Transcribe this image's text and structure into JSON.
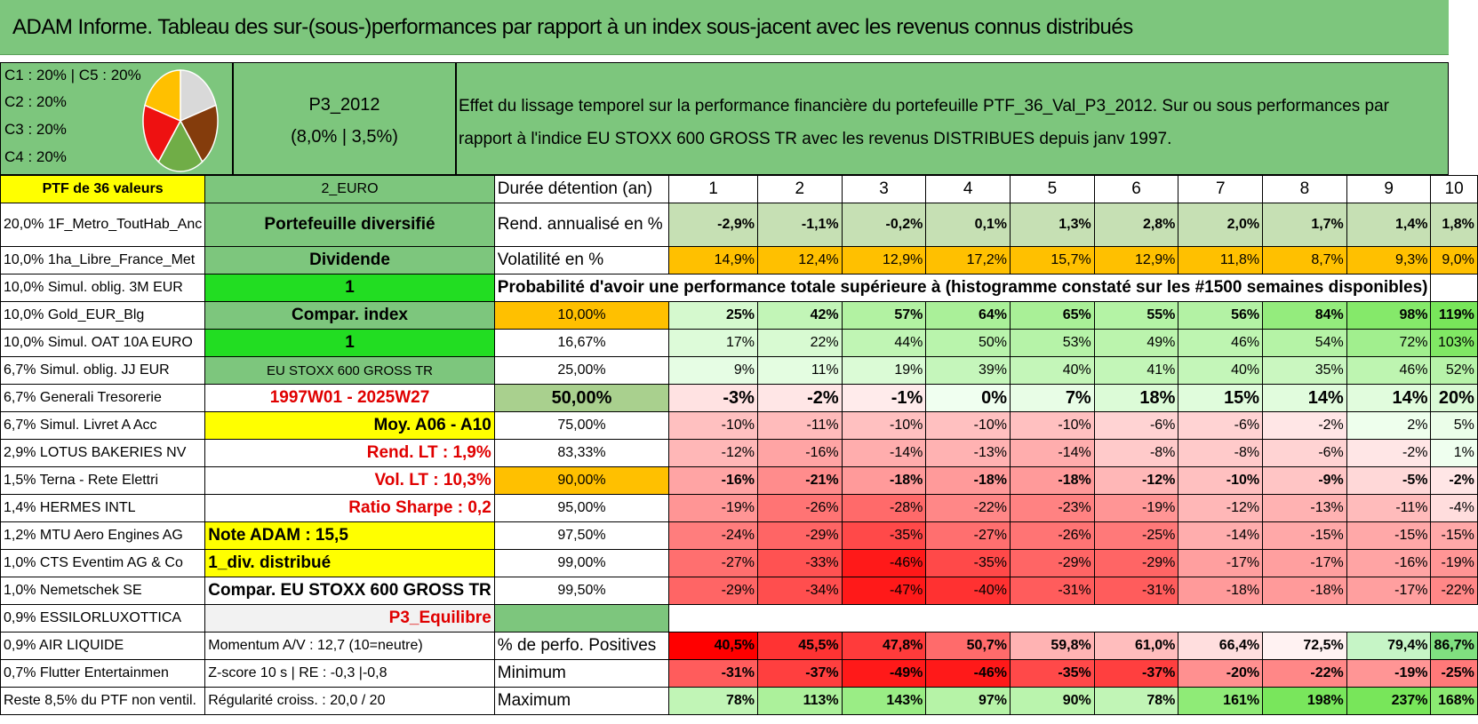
{
  "title": "ADAM Informe. Tableau des sur-(sous-)performances par rapport à un index sous-jacent avec les revenus connus distribués",
  "legend": {
    "lines": [
      "C1 : 20% | C5 : 20%",
      "C2 : 20%",
      "C3 : 20%",
      "C4 : 20%"
    ],
    "pie_colors": [
      "#d9d9d9",
      "#843c0c",
      "#70ad47",
      "#ee1111",
      "#ffc000"
    ]
  },
  "portfolio": {
    "name": "P3_2012",
    "sub": "(8,0% | 3,5%)"
  },
  "description": "Effet du lissage temporel sur la performance financière du portefeuille PTF_36_Val_P3_2012. Sur ou sous performances par rapport à l'indice EU STOXX 600 GROSS TR avec les revenus DISTRIBUES depuis janv 1997.",
  "header_row": {
    "col0": "PTF de 36 valeurs",
    "col1": "2_EURO",
    "col2": "Durée détention (an)",
    "years": [
      "1",
      "2",
      "3",
      "4",
      "5",
      "6",
      "7",
      "8",
      "9",
      "10"
    ]
  },
  "holdings": [
    "20,0% 1F_Metro_ToutHab_Anc",
    "10,0% 1ha_Libre_France_Met",
    "10,0% Simul. oblig. 3M EUR",
    "10,0% Gold_EUR_Blg",
    "10,0% Simul. OAT 10A EURO",
    "6,7% Simul. oblig. JJ EUR",
    "6,7% Generali Tresorerie",
    "6,7% Simul. Livret A Acc",
    "2,9% LOTUS BAKERIES NV",
    "1,5% Terna - Rete Elettri",
    "1,4% HERMES INTL",
    "1,2% MTU Aero Engines AG",
    "1,0% CTS Eventim AG & Co",
    "1,0% Nemetschek SE",
    "0,9% ESSILORLUXOTTICA",
    "0,9% AIR LIQUIDE",
    "0,7% Flutter Entertainmen",
    "Reste 8,5% du PTF non ventil."
  ],
  "info": [
    "Portefeuille diversifié",
    "Dividende",
    "1",
    "Compar. index",
    "1",
    "EU STOXX 600 GROSS TR",
    "1997W01 - 2025W27",
    "Moy. A06 - A10",
    "Rend. LT : 1,9%",
    "Vol. LT : 10,3%",
    "Ratio Sharpe : 0,2",
    "Note ADAM : 15,5",
    "1_div. distribué",
    "Compar. EU STOXX 600 GROSS TR",
    "P3_Equilibre",
    "Momentum A/V : 12,7 (10=neutre)",
    "Z-score 10 s | RE : -0,3 |-0,8",
    "Régularité croiss. : 20,0 / 20"
  ],
  "rend": {
    "label": "Rend. annualisé en %",
    "values": [
      "-2,9%",
      "-1,1%",
      "-0,2%",
      "0,1%",
      "1,3%",
      "2,8%",
      "2,0%",
      "1,7%",
      "1,4%",
      "1,8%"
    ]
  },
  "vol": {
    "label": "Volatilité en %",
    "values": [
      "14,9%",
      "12,4%",
      "12,9%",
      "17,2%",
      "15,7%",
      "12,9%",
      "11,8%",
      "8,7%",
      "9,3%",
      "9,0%"
    ]
  },
  "prob_title": "Probabilité d'avoir une performance totale supérieure à (histogramme constaté sur les #1500 semaines disponibles)",
  "quantiles": [
    {
      "label": "10,00%",
      "values": [
        "25%",
        "42%",
        "57%",
        "64%",
        "65%",
        "55%",
        "56%",
        "84%",
        "98%",
        "119%"
      ]
    },
    {
      "label": "16,67%",
      "values": [
        "17%",
        "22%",
        "44%",
        "50%",
        "53%",
        "49%",
        "46%",
        "54%",
        "72%",
        "103%"
      ]
    },
    {
      "label": "25,00%",
      "values": [
        "9%",
        "11%",
        "19%",
        "39%",
        "40%",
        "41%",
        "40%",
        "35%",
        "46%",
        "52%"
      ]
    },
    {
      "label": "50,00%",
      "values": [
        "-3%",
        "-2%",
        "-1%",
        "0%",
        "7%",
        "18%",
        "15%",
        "14%",
        "14%",
        "20%"
      ]
    },
    {
      "label": "75,00%",
      "values": [
        "-10%",
        "-11%",
        "-10%",
        "-10%",
        "-10%",
        "-6%",
        "-6%",
        "-2%",
        "2%",
        "5%"
      ]
    },
    {
      "label": "83,33%",
      "values": [
        "-12%",
        "-16%",
        "-14%",
        "-13%",
        "-14%",
        "-8%",
        "-8%",
        "-6%",
        "-2%",
        "1%"
      ]
    },
    {
      "label": "90,00%",
      "values": [
        "-16%",
        "-21%",
        "-18%",
        "-18%",
        "-18%",
        "-12%",
        "-10%",
        "-9%",
        "-5%",
        "-2%"
      ]
    },
    {
      "label": "95,00%",
      "values": [
        "-19%",
        "-26%",
        "-28%",
        "-22%",
        "-23%",
        "-19%",
        "-12%",
        "-13%",
        "-11%",
        "-4%"
      ]
    },
    {
      "label": "97,50%",
      "values": [
        "-24%",
        "-29%",
        "-35%",
        "-27%",
        "-26%",
        "-25%",
        "-14%",
        "-15%",
        "-15%",
        "-15%"
      ]
    },
    {
      "label": "99,00%",
      "values": [
        "-27%",
        "-33%",
        "-46%",
        "-35%",
        "-29%",
        "-29%",
        "-17%",
        "-17%",
        "-16%",
        "-19%"
      ]
    },
    {
      "label": "99,50%",
      "values": [
        "-29%",
        "-34%",
        "-47%",
        "-40%",
        "-31%",
        "-31%",
        "-18%",
        "-18%",
        "-17%",
        "-22%"
      ]
    }
  ],
  "positives": {
    "label": "% de perfo. Positives",
    "values": [
      "40,5%",
      "45,5%",
      "47,8%",
      "50,7%",
      "59,8%",
      "61,0%",
      "66,4%",
      "72,5%",
      "79,4%",
      "86,7%"
    ]
  },
  "minimum": {
    "label": "Minimum",
    "values": [
      "-31%",
      "-37%",
      "-49%",
      "-46%",
      "-35%",
      "-37%",
      "-20%",
      "-22%",
      "-19%",
      "-25%"
    ]
  },
  "maximum": {
    "label": "Maximum",
    "values": [
      "78%",
      "113%",
      "143%",
      "97%",
      "90%",
      "78%",
      "161%",
      "198%",
      "237%",
      "168%"
    ]
  },
  "colors": {
    "rend_bg": "#c6e0b4",
    "vol_bg": "#ffc000",
    "positives_bg": [
      "#ff0000",
      "#ff3333",
      "#ff3b3b",
      "#ff6b6b",
      "#ffb3b3",
      "#ffbdbd",
      "#ffdede",
      "#fff2f2",
      "#c6f5c6",
      "#80e080"
    ]
  }
}
